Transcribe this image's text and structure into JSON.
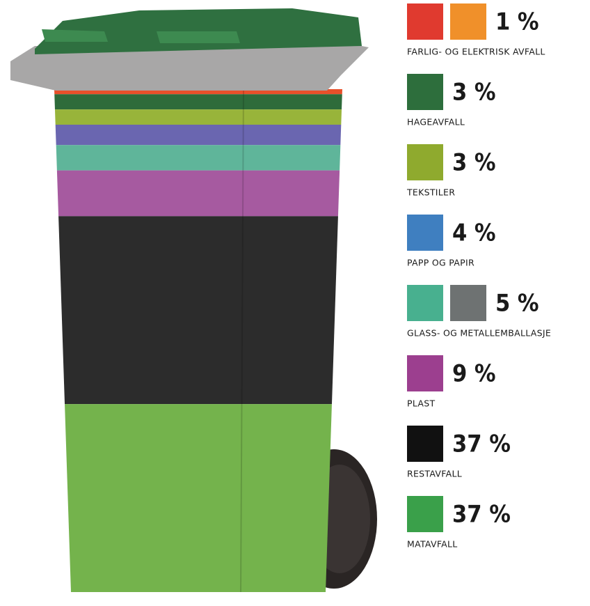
{
  "chart_data": {
    "type": "bar",
    "stacked": true,
    "categories": [
      "FARLIG- OG ELEKTRISK AVFALL",
      "HAGEAVFALL",
      "TEKSTILER",
      "PAPP OG PAPIR",
      "GLASS- OG METALLEMBALLASJE",
      "PLAST",
      "RESTAVFALL",
      "MATAVFALL"
    ],
    "values": [
      1,
      3,
      3,
      4,
      5,
      9,
      37,
      37
    ],
    "value_labels": [
      "1 %",
      "3 %",
      "3 %",
      "4 %",
      "5 %",
      "9 %",
      "37 %",
      "37 %"
    ],
    "colors": [
      "#e8502a",
      "#2e6b3a",
      "#98b43a",
      "#6a66b0",
      "#5fb59a",
      "#a65aa0",
      "#2c2c2c",
      "#74b34c"
    ],
    "icon_colors": [
      [
        "#e03a2f",
        "#f0902a"
      ],
      [
        "#2d6e3c"
      ],
      [
        "#8faa2e"
      ],
      [
        "#3f7fc0"
      ],
      [
        "#48b08f",
        "#6e7272"
      ],
      [
        "#9c3f8f"
      ],
      [
        "#111111"
      ],
      [
        "#3aa04a"
      ]
    ]
  }
}
